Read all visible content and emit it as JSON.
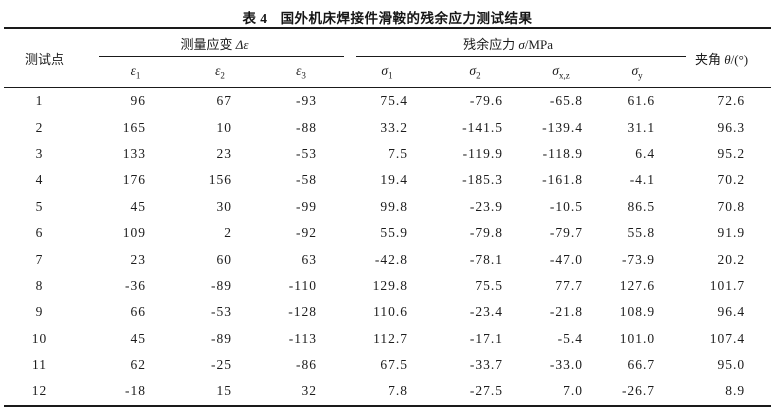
{
  "title": {
    "label": "表 4",
    "text": "国外机床焊接件滑鞍的残余应力测试结果"
  },
  "table": {
    "corner_header": "测试点",
    "angle_header": {
      "text": "夹角 ",
      "sym": "θ",
      "unit": "/(°)"
    },
    "groups": [
      {
        "text": "测量应变 ",
        "sym": "Δε",
        "unit": ""
      },
      {
        "text": "残余应力 ",
        "sym": "σ",
        "unit": "/MPa"
      }
    ],
    "sub_headers": [
      {
        "base": "ε",
        "sub": "1"
      },
      {
        "base": "ε",
        "sub": "2"
      },
      {
        "base": "ε",
        "sub": "3"
      },
      {
        "base": "σ",
        "sub": "1"
      },
      {
        "base": "σ",
        "sub": "2"
      },
      {
        "base": "σ",
        "sub": "x,z"
      },
      {
        "base": "σ",
        "sub": "y"
      }
    ],
    "rows": [
      [
        "1",
        "96",
        "67",
        "-93",
        "75.4",
        "-79.6",
        "-65.8",
        "61.6",
        "72.6"
      ],
      [
        "2",
        "165",
        "10",
        "-88",
        "33.2",
        "-141.5",
        "-139.4",
        "31.1",
        "96.3"
      ],
      [
        "3",
        "133",
        "23",
        "-53",
        "7.5",
        "-119.9",
        "-118.9",
        "6.4",
        "95.2"
      ],
      [
        "4",
        "176",
        "156",
        "-58",
        "19.4",
        "-185.3",
        "-161.8",
        "-4.1",
        "70.2"
      ],
      [
        "5",
        "45",
        "30",
        "-99",
        "99.8",
        "-23.9",
        "-10.5",
        "86.5",
        "70.8"
      ],
      [
        "6",
        "109",
        "2",
        "-92",
        "55.9",
        "-79.8",
        "-79.7",
        "55.8",
        "91.9"
      ],
      [
        "7",
        "23",
        "60",
        "63",
        "-42.8",
        "-78.1",
        "-47.0",
        "-73.9",
        "20.2"
      ],
      [
        "8",
        "-36",
        "-89",
        "-110",
        "129.8",
        "75.5",
        "77.7",
        "127.6",
        "101.7"
      ],
      [
        "9",
        "66",
        "-53",
        "-128",
        "110.6",
        "-23.4",
        "-21.8",
        "108.9",
        "96.4"
      ],
      [
        "10",
        "45",
        "-89",
        "-113",
        "112.7",
        "-17.1",
        "-5.4",
        "101.0",
        "107.4"
      ],
      [
        "11",
        "62",
        "-25",
        "-86",
        "67.5",
        "-33.7",
        "-33.0",
        "66.7",
        "95.0"
      ],
      [
        "12",
        "-18",
        "15",
        "32",
        "7.8",
        "-27.5",
        "7.0",
        "-26.7",
        "8.9"
      ]
    ]
  }
}
